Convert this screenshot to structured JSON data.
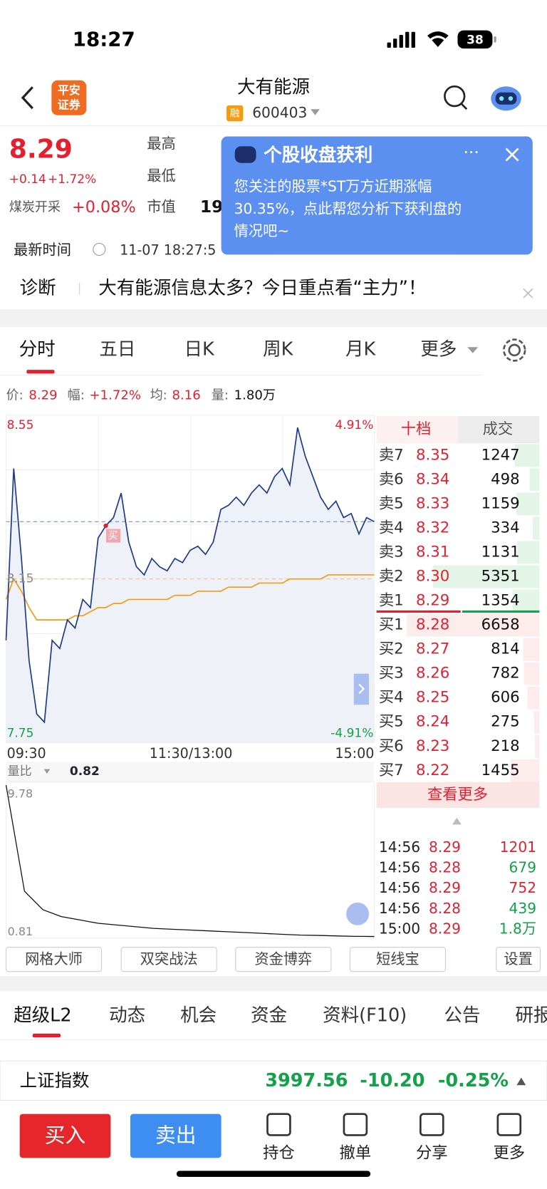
{
  "status_bar": {
    "time": "18:27",
    "battery": "38"
  },
  "header": {
    "logo_lines": [
      "平安",
      "证券"
    ],
    "title": "大有能源",
    "badge": "融",
    "code": "600403"
  },
  "quote": {
    "price": "8.29",
    "change": "+0.14",
    "change_pct": "+1.72%",
    "sector": "煤炭开采",
    "sector_change": "+0.08%",
    "labels": [
      "最高",
      "最低",
      "市值"
    ],
    "cap_partial": "19",
    "time_label": "最新时间",
    "time": "11-07 18:27:5"
  },
  "popup": {
    "title": "个股收盘获利",
    "lines": [
      "您关注的股票*ST万方近期涨幅",
      "30.35%，点此帮您分析下获利盘的",
      "情况吧~"
    ]
  },
  "diagnosis": {
    "label": "诊断",
    "text": "大有能源信息太多？今日重点看“主力”！"
  },
  "tabs": [
    "分时",
    "五日",
    "日K",
    "周K",
    "月K",
    "更多"
  ],
  "info": [
    {
      "label": "价:",
      "value": "8.29"
    },
    {
      "label": "幅:",
      "value": "+1.72%"
    },
    {
      "label": "均:",
      "value": "8.16"
    },
    {
      "label": "量:",
      "value": "1.80万"
    }
  ],
  "chart": {
    "ylim": [
      7.75,
      8.55
    ],
    "pct_labels": [
      "4.91%",
      "-4.91%"
    ],
    "prev_close": 8.15,
    "x_labels": [
      "09:30",
      "11:30/13:00",
      "15:00"
    ],
    "buy_marker": "买",
    "price": [
      8.0,
      8.42,
      8.2,
      7.95,
      7.82,
      7.8,
      8.0,
      7.98,
      8.05,
      8.03,
      8.1,
      8.08,
      8.25,
      8.28,
      8.3,
      8.36,
      8.24,
      8.18,
      8.16,
      8.2,
      8.18,
      8.17,
      8.2,
      8.19,
      8.22,
      8.23,
      8.21,
      8.24,
      8.32,
      8.33,
      8.35,
      8.33,
      8.36,
      8.38,
      8.36,
      8.4,
      8.42,
      8.38,
      8.52,
      8.45,
      8.4,
      8.35,
      8.32,
      8.34,
      8.3,
      8.31,
      8.26,
      8.3,
      8.29
    ],
    "avg": [
      8.1,
      8.15,
      8.12,
      8.08,
      8.05,
      8.05,
      8.05,
      8.05,
      8.05,
      8.06,
      8.06,
      8.07,
      8.08,
      8.08,
      8.09,
      8.09,
      8.1,
      8.1,
      8.1,
      8.1,
      8.1,
      8.1,
      8.11,
      8.11,
      8.11,
      8.12,
      8.12,
      8.12,
      8.12,
      8.13,
      8.13,
      8.13,
      8.13,
      8.14,
      8.14,
      8.14,
      8.14,
      8.15,
      8.15,
      8.15,
      8.15,
      8.15,
      8.16,
      8.16,
      8.16,
      8.16,
      8.16,
      8.16,
      8.16
    ],
    "price_color": "#1f3c88",
    "avg_color": "#f39c12"
  },
  "volume_ratio": {
    "label": "量比",
    "value": "0.82",
    "ylim": [
      0.81,
      9.78
    ],
    "values": [
      9.78,
      3.5,
      2.4,
      2.0,
      1.8,
      1.6,
      1.5,
      1.4,
      1.3,
      1.25,
      1.2,
      1.15,
      1.1,
      1.05,
      1.0,
      0.95,
      0.9,
      0.88,
      0.85,
      0.83,
      0.82
    ]
  },
  "order_book": {
    "headers": [
      "十档",
      "成交"
    ],
    "asks": [
      {
        "label": "卖7",
        "price": "8.35",
        "volume": 1247
      },
      {
        "label": "卖6",
        "price": "8.34",
        "volume": 498
      },
      {
        "label": "卖5",
        "price": "8.33",
        "volume": 1159
      },
      {
        "label": "卖4",
        "price": "8.32",
        "volume": 334
      },
      {
        "label": "卖3",
        "price": "8.31",
        "volume": 1131
      },
      {
        "label": "卖2",
        "price": "8.30",
        "volume": 5351
      },
      {
        "label": "卖1",
        "price": "8.29",
        "volume": 1354
      }
    ],
    "bids": [
      {
        "label": "买1",
        "price": "8.28",
        "volume": 6658
      },
      {
        "label": "买2",
        "price": "8.27",
        "volume": 814
      },
      {
        "label": "买3",
        "price": "8.26",
        "volume": 782
      },
      {
        "label": "买4",
        "price": "8.25",
        "volume": 606
      },
      {
        "label": "买5",
        "price": "8.24",
        "volume": 275
      },
      {
        "label": "买6",
        "price": "8.23",
        "volume": 218
      },
      {
        "label": "买7",
        "price": "8.22",
        "volume": 1455
      }
    ],
    "more": "查看更多"
  },
  "trades": [
    {
      "time": "14:56",
      "price": "8.29",
      "volume": "1201",
      "color": "#e5202e"
    },
    {
      "time": "14:56",
      "price": "8.28",
      "volume": "679",
      "color": "#13a14a"
    },
    {
      "time": "14:56",
      "price": "8.29",
      "volume": "752",
      "color": "#e5202e"
    },
    {
      "time": "14:56",
      "price": "8.28",
      "volume": "439",
      "color": "#13a14a"
    },
    {
      "time": "15:00",
      "price": "8.29",
      "volume": "1.8万",
      "color": "#13a14a"
    }
  ],
  "tools": [
    "网格大师",
    "双突战法",
    "资金博弈",
    "短线宝",
    "设置"
  ],
  "section_tabs": [
    "超级L2",
    "动态",
    "机会",
    "资金",
    "资料(F10)",
    "公告",
    "研报"
  ],
  "index_bar": {
    "name": "上证指数",
    "value": "3997.56",
    "change": "-10.20",
    "change_pct": "-0.25%"
  },
  "actions": [
    "买入",
    "卖出"
  ],
  "nav": [
    "持仓",
    "撤单",
    "分享",
    "更多"
  ]
}
